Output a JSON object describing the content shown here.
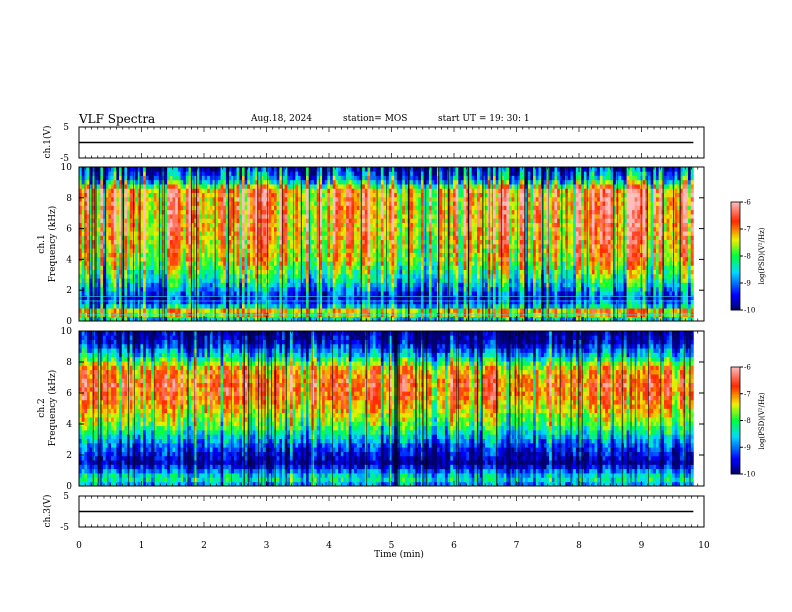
{
  "header": {
    "title": "VLF Spectra",
    "date": "Aug.18, 2024",
    "station": "station= MOS",
    "start_ut": "start  UT  =    19: 30: 1"
  },
  "chart_data": [
    {
      "type": "line",
      "panel": "ch1-waveform",
      "ylabel": "ch.1(V)",
      "ylim": [
        -5,
        5
      ],
      "yticks": [
        "5",
        "-5"
      ],
      "x": [
        0,
        9.83
      ],
      "values": [
        0,
        0
      ],
      "color": "#000000"
    },
    {
      "type": "heatmap",
      "panel": "ch1-spectrogram",
      "ylabel": "ch.1\nFrequency (kHz)",
      "ylim": [
        0,
        10
      ],
      "yticks": [
        "0",
        "2",
        "4",
        "6",
        "8",
        "10"
      ],
      "xlim": [
        0,
        10
      ],
      "data_end_min": 9.83,
      "colorbar": {
        "range": [
          -10,
          -6
        ],
        "ticks": [
          "-6",
          "-7",
          "-8",
          "-9",
          "-10"
        ],
        "label": "log(PSD)(V²/Hz)"
      },
      "intensity_profile_by_freq_khz": [
        [
          0,
          -8.8
        ],
        [
          0.6,
          -6.8
        ],
        [
          1.0,
          -8.6
        ],
        [
          1.5,
          -9.3
        ],
        [
          2.5,
          -8.3
        ],
        [
          4,
          -7.3
        ],
        [
          6,
          -6.9
        ],
        [
          8.5,
          -6.8
        ],
        [
          9.2,
          -8.6
        ],
        [
          10,
          -9.4
        ]
      ],
      "horizontal_lines_khz": [
        1.3,
        1.6,
        0.4
      ]
    },
    {
      "type": "heatmap",
      "panel": "ch2-spectrogram",
      "ylabel": "ch.2\nFrequency (kHz)",
      "ylim": [
        0,
        10
      ],
      "yticks": [
        "0",
        "2",
        "4",
        "6",
        "8",
        "10"
      ],
      "xlim": [
        0,
        10
      ],
      "data_end_min": 9.83,
      "colorbar": {
        "range": [
          -10,
          -6
        ],
        "ticks": [
          "-6",
          "-7",
          "-8",
          "-9",
          "-10"
        ],
        "label": "log(PSD)(V²/Hz)"
      },
      "intensity_profile_by_freq_khz": [
        [
          0,
          -8.9
        ],
        [
          0.5,
          -8.2
        ],
        [
          1.5,
          -9.8
        ],
        [
          2.5,
          -9.2
        ],
        [
          4,
          -7.8
        ],
        [
          5.5,
          -7.0
        ],
        [
          6.6,
          -6.7
        ],
        [
          7.6,
          -7.2
        ],
        [
          8.5,
          -8.6
        ],
        [
          9.3,
          -9.6
        ],
        [
          10,
          -9.9
        ]
      ]
    },
    {
      "type": "line",
      "panel": "ch3-waveform",
      "ylabel": "ch.3(V)",
      "ylim": [
        -5,
        5
      ],
      "yticks": [
        "5",
        "-5"
      ],
      "xlabel": "Time  (min)",
      "xlim": [
        0,
        10
      ],
      "xticks": [
        "0",
        "1",
        "2",
        "3",
        "4",
        "5",
        "6",
        "7",
        "8",
        "9",
        "10"
      ],
      "x": [
        0,
        9.83
      ],
      "values": [
        0,
        0
      ],
      "color": "#000000"
    }
  ]
}
